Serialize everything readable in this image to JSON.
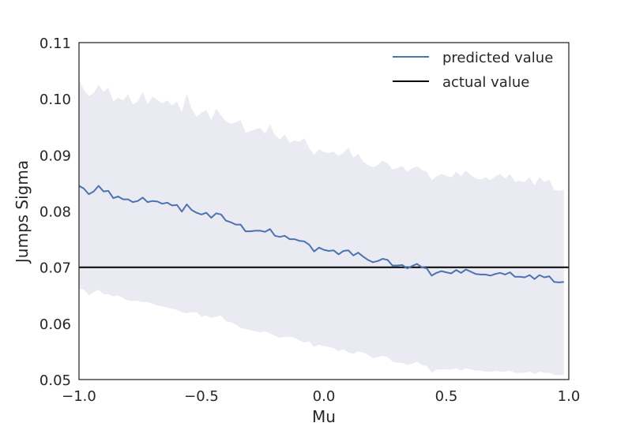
{
  "chart_data": {
    "type": "line",
    "title": "",
    "xlabel": "Mu",
    "ylabel": "Jumps Sigma",
    "xlim": [
      -1.0,
      1.0
    ],
    "ylim": [
      0.05,
      0.11
    ],
    "grid": false,
    "legend_position": "top-right",
    "x_ticks": [
      -1.0,
      -0.5,
      0.0,
      0.5,
      1.0
    ],
    "x_tick_labels": [
      "−1.0",
      "−0.5",
      "0.0",
      "0.5",
      "1.0"
    ],
    "y_ticks": [
      0.05,
      0.06,
      0.07,
      0.08,
      0.09,
      0.1,
      0.11
    ],
    "y_tick_labels": [
      "0.05",
      "0.06",
      "0.07",
      "0.08",
      "0.09",
      "0.10",
      "0.11"
    ],
    "colors": {
      "predicted": "#4c72b0",
      "actual": "#000000",
      "band": "#eaeaf2",
      "frame": "#262626"
    },
    "series": [
      {
        "name": "predicted value",
        "x": [
          -1.0,
          -0.98,
          -0.96,
          -0.94,
          -0.92,
          -0.9,
          -0.88,
          -0.86,
          -0.84,
          -0.82,
          -0.8,
          -0.78,
          -0.76,
          -0.74,
          -0.72,
          -0.7,
          -0.68,
          -0.66,
          -0.64,
          -0.62,
          -0.6,
          -0.58,
          -0.56,
          -0.54,
          -0.52,
          -0.5,
          -0.48,
          -0.46,
          -0.44,
          -0.42,
          -0.4,
          -0.38,
          -0.36,
          -0.34,
          -0.32,
          -0.3,
          -0.28,
          -0.26,
          -0.24,
          -0.22,
          -0.2,
          -0.18,
          -0.16,
          -0.14,
          -0.12,
          -0.1,
          -0.08,
          -0.06,
          -0.04,
          -0.02,
          0.0,
          0.02,
          0.04,
          0.06,
          0.08,
          0.1,
          0.12,
          0.14,
          0.16,
          0.18,
          0.2,
          0.22,
          0.24,
          0.26,
          0.28,
          0.3,
          0.32,
          0.34,
          0.36,
          0.38,
          0.4,
          0.42,
          0.44,
          0.46,
          0.48,
          0.5,
          0.52,
          0.54,
          0.56,
          0.58,
          0.6,
          0.62,
          0.64,
          0.66,
          0.68,
          0.7,
          0.72,
          0.74,
          0.76,
          0.78,
          0.8,
          0.82,
          0.84,
          0.86,
          0.88,
          0.9,
          0.92,
          0.94,
          0.96,
          0.98
        ],
        "y": [
          0.0845,
          0.084,
          0.083,
          0.0835,
          0.0845,
          0.0835,
          0.0836,
          0.0823,
          0.0826,
          0.0821,
          0.0821,
          0.0816,
          0.0818,
          0.0824,
          0.0816,
          0.0818,
          0.0817,
          0.0813,
          0.0815,
          0.081,
          0.0811,
          0.0799,
          0.0812,
          0.0802,
          0.0797,
          0.0794,
          0.0797,
          0.0788,
          0.0796,
          0.0794,
          0.0783,
          0.078,
          0.0776,
          0.0776,
          0.0764,
          0.0764,
          0.0765,
          0.0765,
          0.0763,
          0.0768,
          0.0756,
          0.0754,
          0.0756,
          0.075,
          0.075,
          0.0747,
          0.0746,
          0.074,
          0.0728,
          0.0735,
          0.0731,
          0.0729,
          0.073,
          0.0723,
          0.0729,
          0.073,
          0.0721,
          0.0726,
          0.0719,
          0.0713,
          0.0709,
          0.0711,
          0.0715,
          0.0713,
          0.0703,
          0.0703,
          0.0704,
          0.0698,
          0.0702,
          0.0706,
          0.07,
          0.0698,
          0.0685,
          0.069,
          0.0693,
          0.0691,
          0.0689,
          0.0695,
          0.069,
          0.0696,
          0.0692,
          0.0688,
          0.0687,
          0.0687,
          0.0685,
          0.0688,
          0.069,
          0.0687,
          0.0691,
          0.0683,
          0.0683,
          0.0682,
          0.0686,
          0.0679,
          0.0686,
          0.0682,
          0.0684,
          0.0674,
          0.0673,
          0.0674
        ]
      },
      {
        "name": "actual value",
        "x": [
          -1.0,
          1.0
        ],
        "y": [
          0.07,
          0.07
        ]
      }
    ],
    "band": {
      "x": [
        -1.0,
        -0.98,
        -0.96,
        -0.94,
        -0.92,
        -0.9,
        -0.88,
        -0.86,
        -0.84,
        -0.82,
        -0.8,
        -0.78,
        -0.76,
        -0.74,
        -0.72,
        -0.7,
        -0.68,
        -0.66,
        -0.64,
        -0.62,
        -0.6,
        -0.58,
        -0.56,
        -0.54,
        -0.52,
        -0.5,
        -0.48,
        -0.46,
        -0.44,
        -0.42,
        -0.4,
        -0.38,
        -0.36,
        -0.34,
        -0.32,
        -0.3,
        -0.28,
        -0.26,
        -0.24,
        -0.22,
        -0.2,
        -0.18,
        -0.16,
        -0.14,
        -0.12,
        -0.1,
        -0.08,
        -0.06,
        -0.04,
        -0.02,
        0.0,
        0.02,
        0.04,
        0.06,
        0.08,
        0.1,
        0.12,
        0.14,
        0.16,
        0.18,
        0.2,
        0.22,
        0.24,
        0.26,
        0.28,
        0.3,
        0.32,
        0.34,
        0.36,
        0.38,
        0.4,
        0.42,
        0.44,
        0.46,
        0.48,
        0.5,
        0.52,
        0.54,
        0.56,
        0.58,
        0.6,
        0.62,
        0.64,
        0.66,
        0.68,
        0.7,
        0.72,
        0.74,
        0.76,
        0.78,
        0.8,
        0.82,
        0.84,
        0.86,
        0.88,
        0.9,
        0.92,
        0.94,
        0.96,
        0.98
      ],
      "upper": [
        0.1035,
        0.1015,
        0.1005,
        0.101,
        0.1025,
        0.1012,
        0.102,
        0.0995,
        0.1002,
        0.0997,
        0.1008,
        0.099,
        0.0995,
        0.1012,
        0.099,
        0.1004,
        0.0998,
        0.0992,
        0.0997,
        0.0988,
        0.0995,
        0.0976,
        0.1009,
        0.0982,
        0.0968,
        0.0975,
        0.098,
        0.0962,
        0.0982,
        0.097,
        0.096,
        0.0956,
        0.0958,
        0.0962,
        0.094,
        0.0942,
        0.0946,
        0.0948,
        0.0938,
        0.0954,
        0.0935,
        0.0928,
        0.0936,
        0.0922,
        0.0926,
        0.0923,
        0.093,
        0.0912,
        0.09,
        0.091,
        0.0905,
        0.0903,
        0.0906,
        0.0898,
        0.0904,
        0.0913,
        0.0895,
        0.0902,
        0.0888,
        0.0882,
        0.0878,
        0.0882,
        0.089,
        0.0885,
        0.0874,
        0.0877,
        0.088,
        0.087,
        0.0876,
        0.088,
        0.0873,
        0.087,
        0.0855,
        0.0862,
        0.0866,
        0.0863,
        0.086,
        0.087,
        0.0862,
        0.0872,
        0.0864,
        0.0858,
        0.0856,
        0.086,
        0.0855,
        0.0862,
        0.0866,
        0.0858,
        0.0866,
        0.0852,
        0.0854,
        0.0852,
        0.086,
        0.0846,
        0.086,
        0.0852,
        0.0856,
        0.0838,
        0.0836,
        0.0838
      ],
      "lower": [
        0.0662,
        0.066,
        0.065,
        0.0656,
        0.066,
        0.0652,
        0.0652,
        0.0648,
        0.065,
        0.0645,
        0.0641,
        0.064,
        0.064,
        0.0638,
        0.0638,
        0.0635,
        0.0632,
        0.063,
        0.0628,
        0.0626,
        0.0624,
        0.062,
        0.0618,
        0.062,
        0.062,
        0.0612,
        0.0614,
        0.061,
        0.0612,
        0.0614,
        0.0604,
        0.0602,
        0.0598,
        0.0592,
        0.059,
        0.0588,
        0.0586,
        0.0584,
        0.0586,
        0.0582,
        0.0578,
        0.0574,
        0.0576,
        0.0576,
        0.0574,
        0.057,
        0.0566,
        0.0568,
        0.0558,
        0.0562,
        0.056,
        0.0558,
        0.0556,
        0.055,
        0.0554,
        0.0548,
        0.0546,
        0.055,
        0.0548,
        0.0544,
        0.0538,
        0.054,
        0.0542,
        0.054,
        0.0532,
        0.053,
        0.053,
        0.0526,
        0.0528,
        0.0532,
        0.0526,
        0.0524,
        0.0512,
        0.0518,
        0.0518,
        0.0518,
        0.0518,
        0.052,
        0.0516,
        0.052,
        0.0518,
        0.0516,
        0.0516,
        0.0514,
        0.0514,
        0.0516,
        0.0514,
        0.0514,
        0.0516,
        0.0512,
        0.0512,
        0.0512,
        0.0514,
        0.051,
        0.0514,
        0.0512,
        0.0512,
        0.0508,
        0.0508,
        0.0508
      ]
    }
  }
}
